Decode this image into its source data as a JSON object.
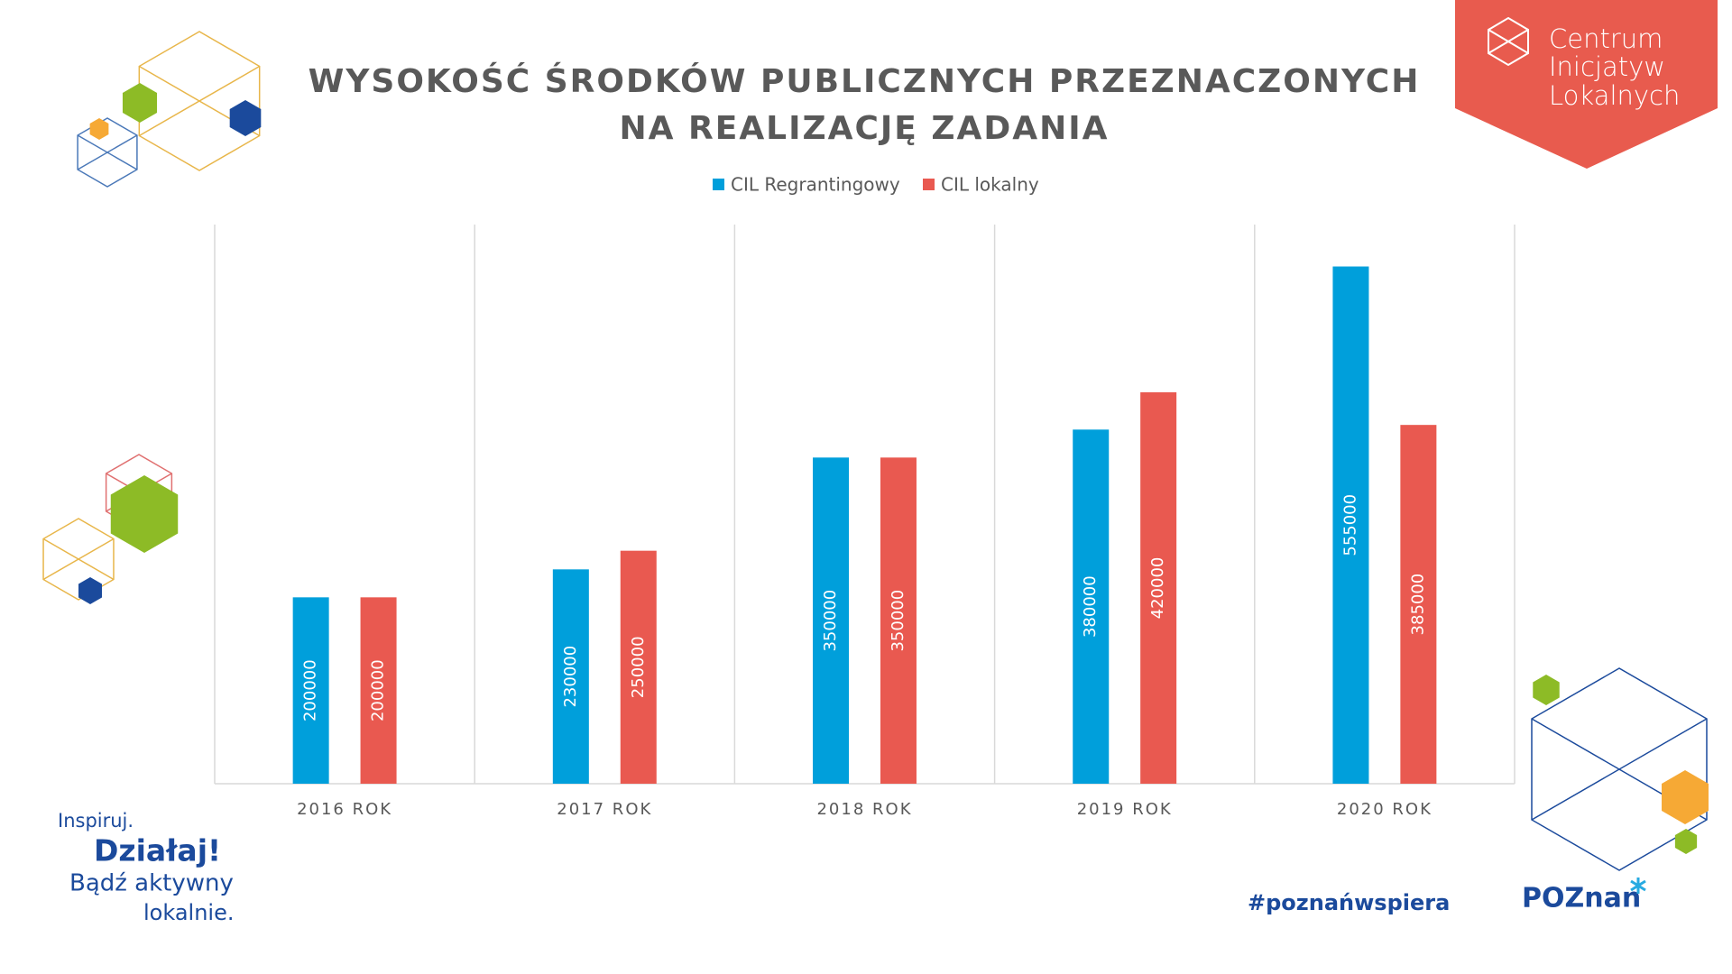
{
  "chart_data": {
    "type": "bar",
    "title": [
      "WYSOKOŚĆ ŚRODKÓW PUBLICZNYCH PRZEZNACZONYCH",
      "NA REALIZACJĘ ZADANIA"
    ],
    "categories": [
      "2016 ROK",
      "2017 ROK",
      "2018 ROK",
      "2019 ROK",
      "2020 ROK"
    ],
    "series": [
      {
        "name": "CIL Regrantingowy",
        "color": "#009fdb",
        "values": [
          200000,
          230000,
          350000,
          380000,
          555000
        ]
      },
      {
        "name": "CIL lokalny",
        "color": "#e95950",
        "values": [
          200000,
          250000,
          350000,
          420000,
          385000
        ]
      }
    ],
    "ylim": [
      0,
      600000
    ],
    "legend": "top"
  },
  "logo": {
    "lines": [
      "Centrum",
      "Inicjatyw",
      "Lokalnych"
    ]
  },
  "slogan": {
    "lines": [
      "Inspiruj.",
      "Działaj!",
      "Bądź aktywny",
      "lokalnie."
    ]
  },
  "hashtag": "#poznańwspiera",
  "city_logo": "POZnan"
}
